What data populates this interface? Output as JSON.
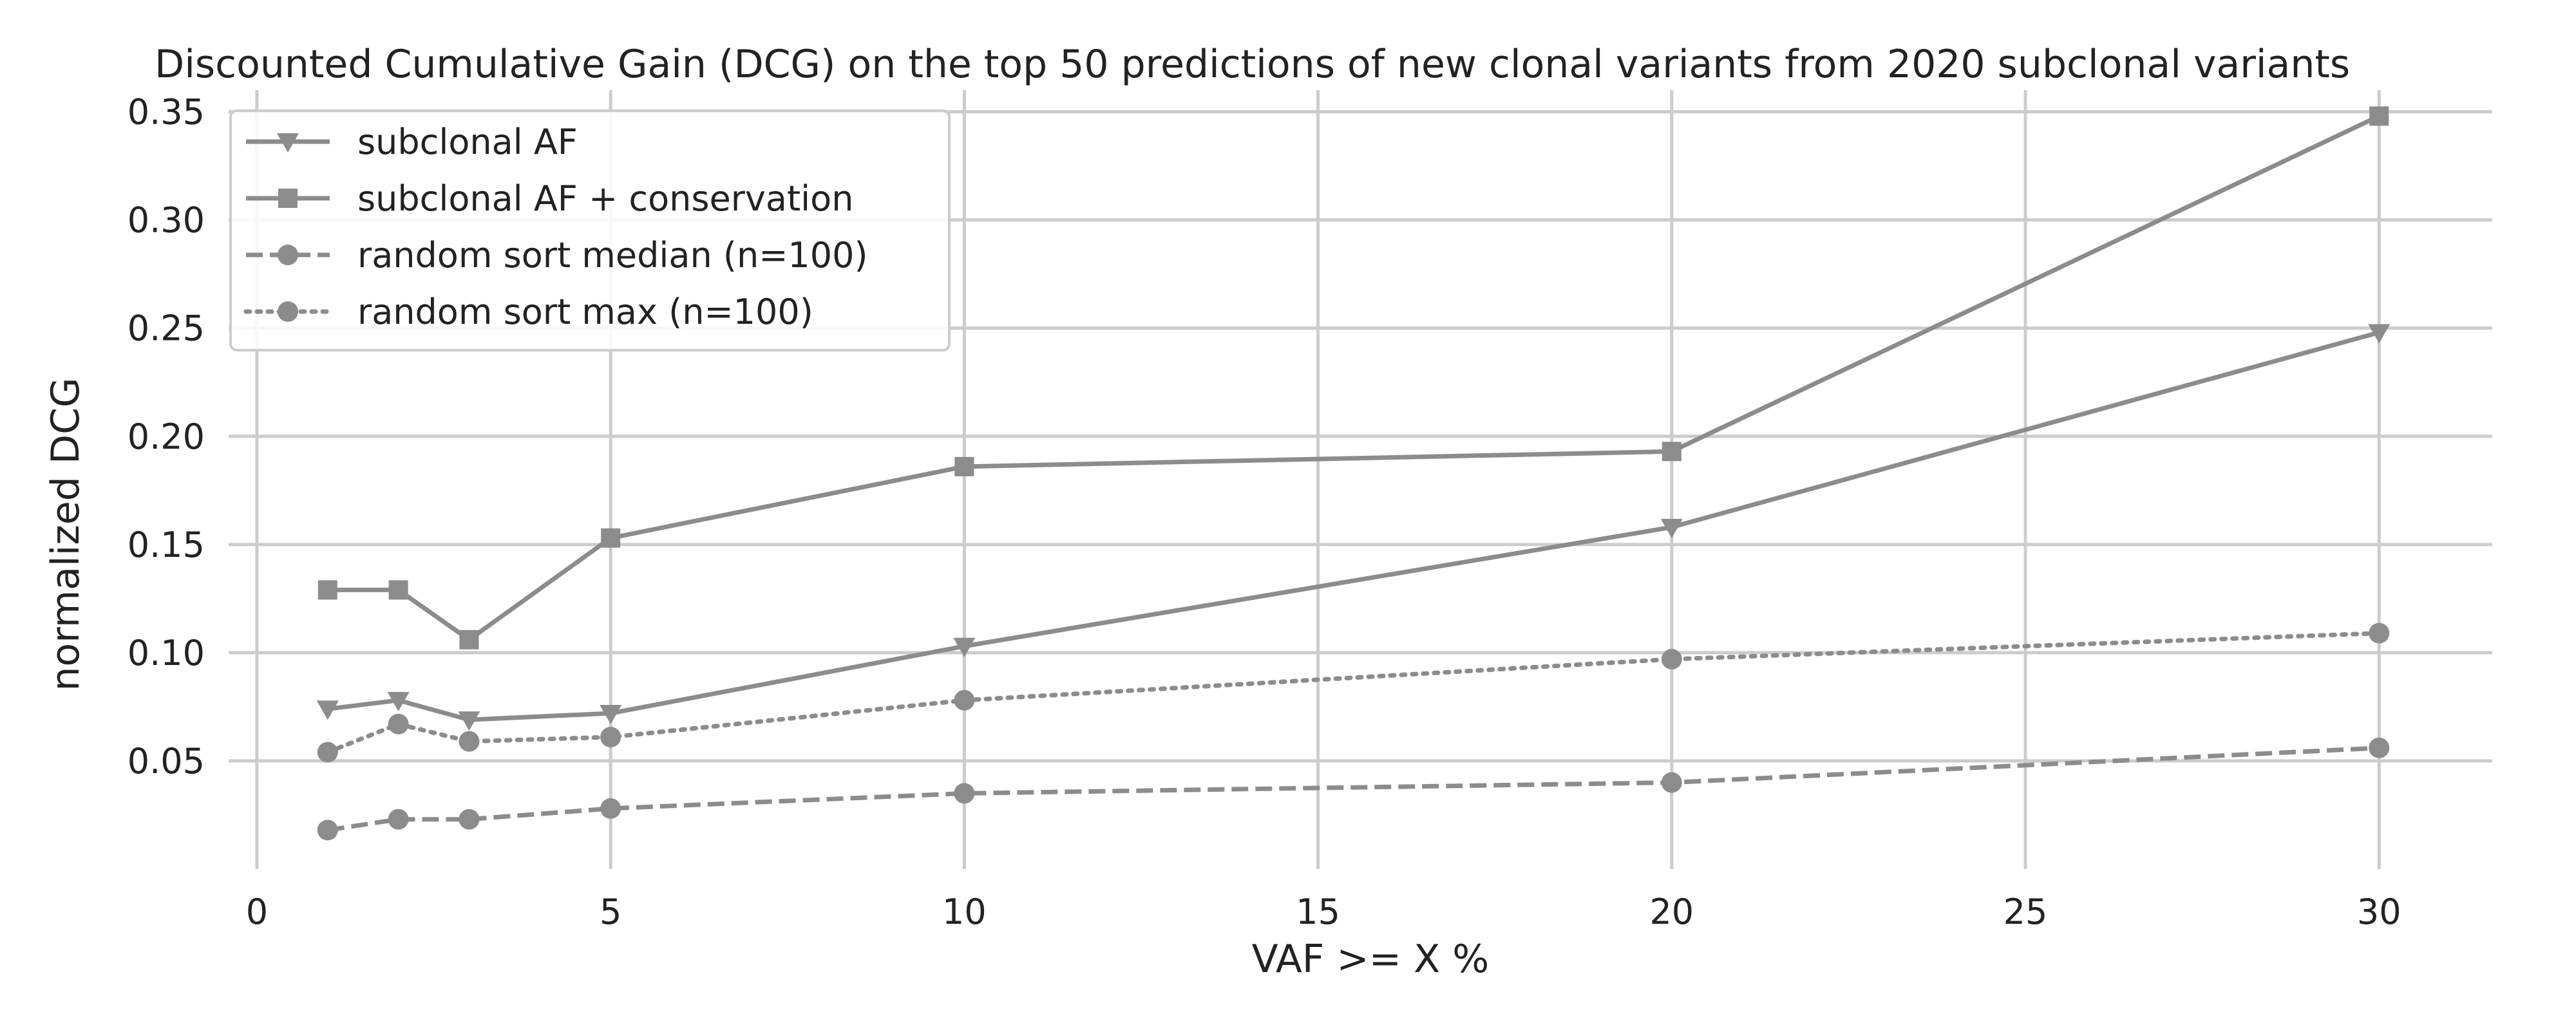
{
  "chart_data": {
    "type": "line",
    "title": "Discounted Cumulative Gain (DCG) on the top 50 predictions of new clonal variants from 2020 subclonal variants",
    "xlabel": "VAF >= X %",
    "ylabel": "normalized DCG",
    "x": [
      1,
      2,
      3,
      5,
      10,
      20,
      30
    ],
    "xlim": [
      -0.4,
      31.6
    ],
    "ylim": [
      0.0,
      0.36
    ],
    "xticks": [
      0,
      5,
      10,
      15,
      20,
      25,
      30
    ],
    "yticks": [
      0.05,
      0.1,
      0.15,
      0.2,
      0.25,
      0.3,
      0.35
    ],
    "xtick_labels": [
      "0",
      "5",
      "10",
      "15",
      "20",
      "25",
      "30"
    ],
    "ytick_labels": [
      "0.05",
      "0.10",
      "0.15",
      "0.20",
      "0.25",
      "0.30",
      "0.35"
    ],
    "grid": true,
    "legend_position": "top-left",
    "series": [
      {
        "name": "subclonal AF",
        "values": [
          0.074,
          0.078,
          0.069,
          0.072,
          0.103,
          0.158,
          0.248
        ],
        "marker": "triangle-down",
        "line_style": "solid",
        "color": "#8c8c8c"
      },
      {
        "name": "subclonal AF + conservation",
        "values": [
          0.129,
          0.129,
          0.106,
          0.153,
          0.186,
          0.193,
          0.348
        ],
        "marker": "square",
        "line_style": "solid",
        "color": "#8c8c8c"
      },
      {
        "name": "random sort median (n=100)",
        "values": [
          0.018,
          0.023,
          0.023,
          0.028,
          0.035,
          0.04,
          0.056
        ],
        "marker": "circle",
        "line_style": "dashed",
        "color": "#8c8c8c"
      },
      {
        "name": "random sort max (n=100)",
        "values": [
          0.054,
          0.067,
          0.059,
          0.061,
          0.078,
          0.097,
          0.109
        ],
        "marker": "circle",
        "line_style": "dotted",
        "color": "#8c8c8c"
      }
    ]
  }
}
